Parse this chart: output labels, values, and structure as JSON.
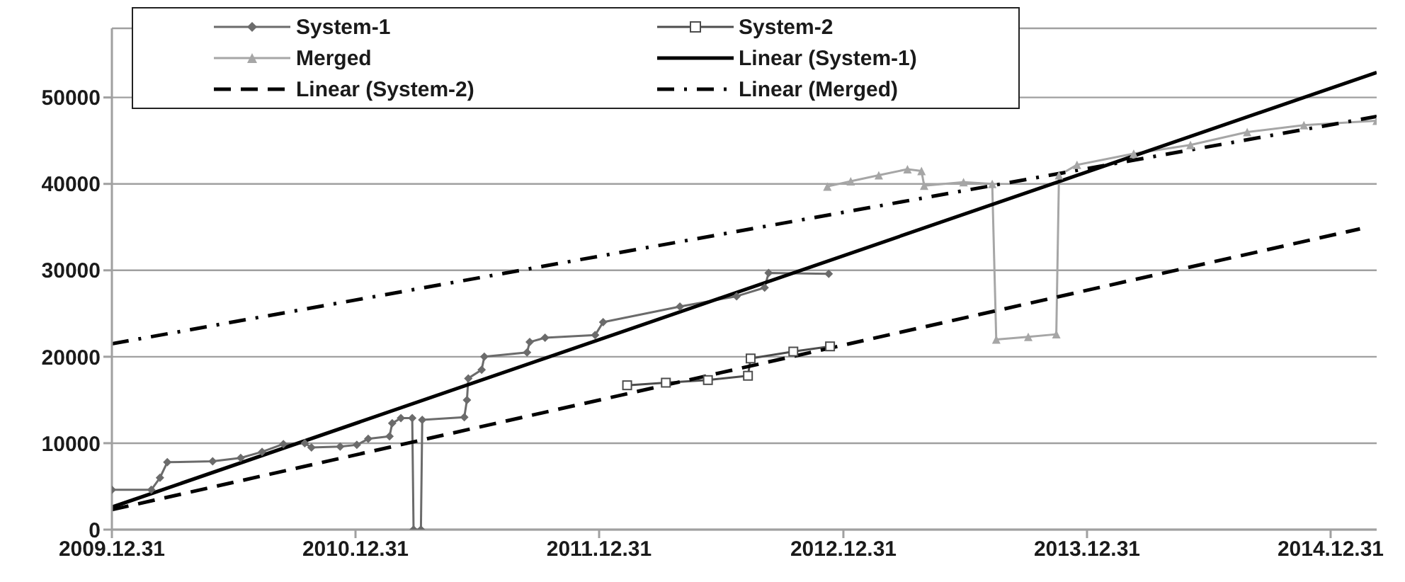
{
  "chart_data": {
    "type": "line",
    "legend": "top",
    "grid": "y",
    "xlim": [
      "2009-12-31",
      "2015-03-10"
    ],
    "xticks": [
      {
        "value": "2009-12-31",
        "label": "2009.12.31"
      },
      {
        "value": "2010-12-31",
        "label": "2010.12.31"
      },
      {
        "value": "2011-12-31",
        "label": "2011.12.31"
      },
      {
        "value": "2012-12-31",
        "label": "2012.12.31"
      },
      {
        "value": "2013-12-31",
        "label": "2013.12.31"
      },
      {
        "value": "2014-12-31",
        "label": "2014.12.31"
      }
    ],
    "ylim": [
      0,
      58000
    ],
    "yticks": [
      0,
      10000,
      20000,
      30000,
      40000,
      50000
    ],
    "series": [
      {
        "name": "System-1",
        "color": "#6b6b6b",
        "marker": "diamond",
        "line_style": "solid",
        "x": [
          "2009-12-31",
          "2010-02-28",
          "2010-03-13",
          "2010-03-24",
          "2010-05-31",
          "2010-07-12",
          "2010-08-13",
          "2010-09-14",
          "2010-10-16",
          "2010-10-26",
          "2010-12-08",
          "2011-01-02",
          "2011-01-19",
          "2011-02-20",
          "2011-02-24",
          "2011-03-09",
          "2011-03-26",
          "2011-03-28",
          "2011-04-08",
          "2011-04-10",
          "2011-06-12",
          "2011-06-16",
          "2011-06-18",
          "2011-07-08",
          "2011-07-12",
          "2011-09-14",
          "2011-09-18",
          "2011-10-11",
          "2011-12-25",
          "2012-01-06",
          "2012-04-30",
          "2012-07-24",
          "2012-09-04",
          "2012-09-10",
          "2012-12-09"
        ],
        "values": [
          4600,
          4600,
          6000,
          7800,
          7900,
          8300,
          9000,
          9900,
          10000,
          9500,
          9600,
          9800,
          10500,
          10800,
          12300,
          12900,
          12900,
          0,
          0,
          12700,
          13000,
          15000,
          17500,
          18500,
          20000,
          20500,
          21700,
          22200,
          22500,
          24000,
          25800,
          27000,
          28000,
          29700,
          29600
        ]
      },
      {
        "name": "System-2",
        "color": "#4d4d4d",
        "marker": "square",
        "line_style": "solid",
        "x": [
          "2012-02-11",
          "2012-04-09",
          "2012-06-11",
          "2012-08-10",
          "2012-08-14",
          "2012-10-17",
          "2012-12-11"
        ],
        "values": [
          16700,
          17000,
          17300,
          17800,
          19800,
          20600,
          21200
        ]
      },
      {
        "name": "Merged",
        "color": "#a6a6a6",
        "marker": "triangle",
        "line_style": "solid",
        "x": [
          "2012-12-07",
          "2013-01-11",
          "2013-02-22",
          "2013-04-06",
          "2013-04-27",
          "2013-05-01",
          "2013-06-29",
          "2013-08-11",
          "2013-08-17",
          "2013-10-04",
          "2013-11-15",
          "2013-11-19",
          "2013-12-16",
          "2014-03-11",
          "2014-06-04",
          "2014-08-28",
          "2014-11-21",
          "2015-03-10"
        ],
        "values": [
          39700,
          40300,
          41000,
          41700,
          41500,
          39800,
          40200,
          40000,
          22000,
          22300,
          22600,
          41000,
          42200,
          43500,
          44500,
          46000,
          46800,
          47300
        ]
      },
      {
        "name": "Linear (System-1)",
        "color": "#000000",
        "marker": "none",
        "line_style": "solid",
        "x": [
          "2009-12-31",
          "2015-03-10"
        ],
        "values": [
          2600,
          52900
        ]
      },
      {
        "name": "Linear (System-2)",
        "color": "#000000",
        "marker": "none",
        "line_style": "dashed",
        "x": [
          "2009-12-31",
          "2015-02-13"
        ],
        "values": [
          2300,
          34800
        ]
      },
      {
        "name": "Linear (Merged)",
        "color": "#000000",
        "marker": "none",
        "line_style": "dashdot",
        "x": [
          "2009-12-31",
          "2015-03-10"
        ],
        "values": [
          21500,
          47800
        ]
      }
    ]
  }
}
